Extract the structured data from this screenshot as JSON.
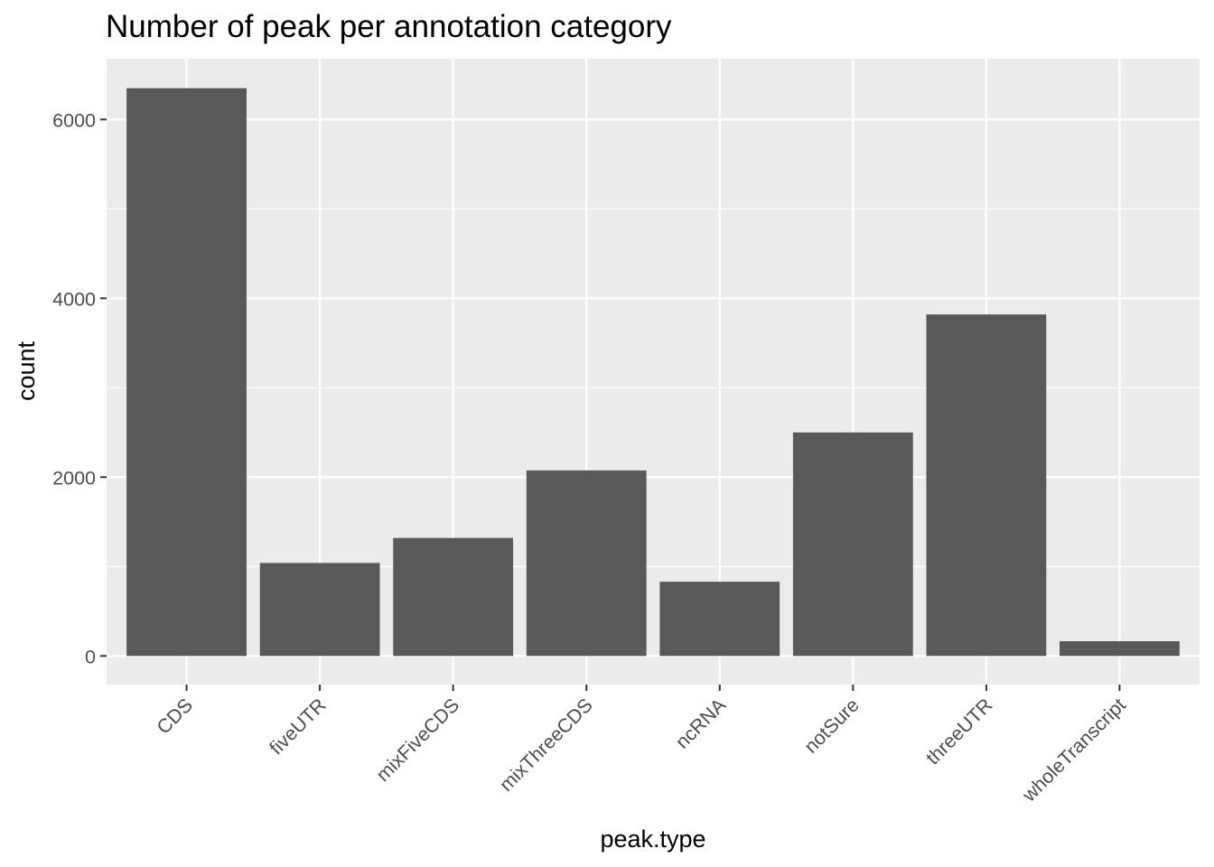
{
  "chart_data": {
    "type": "bar",
    "title": "Number of peak per annotation category",
    "xlabel": "peak.type",
    "ylabel": "count",
    "categories": [
      "CDS",
      "fiveUTR",
      "mixFiveCDS",
      "mixThreeCDS",
      "ncRNA",
      "notSure",
      "threeUTR",
      "wholeTranscript"
    ],
    "values": [
      6350,
      1040,
      1320,
      2075,
      830,
      2500,
      3820,
      165
    ],
    "ylim": [
      -320,
      6680
    ],
    "yticks": [
      0,
      2000,
      4000,
      6000
    ],
    "ytick_labels": [
      "0",
      "2000",
      "4000",
      "6000"
    ],
    "grid": true,
    "colors": {
      "bar": "#595959",
      "panel": "#ebebeb",
      "grid": "#ffffff",
      "tick": "#333333"
    }
  }
}
